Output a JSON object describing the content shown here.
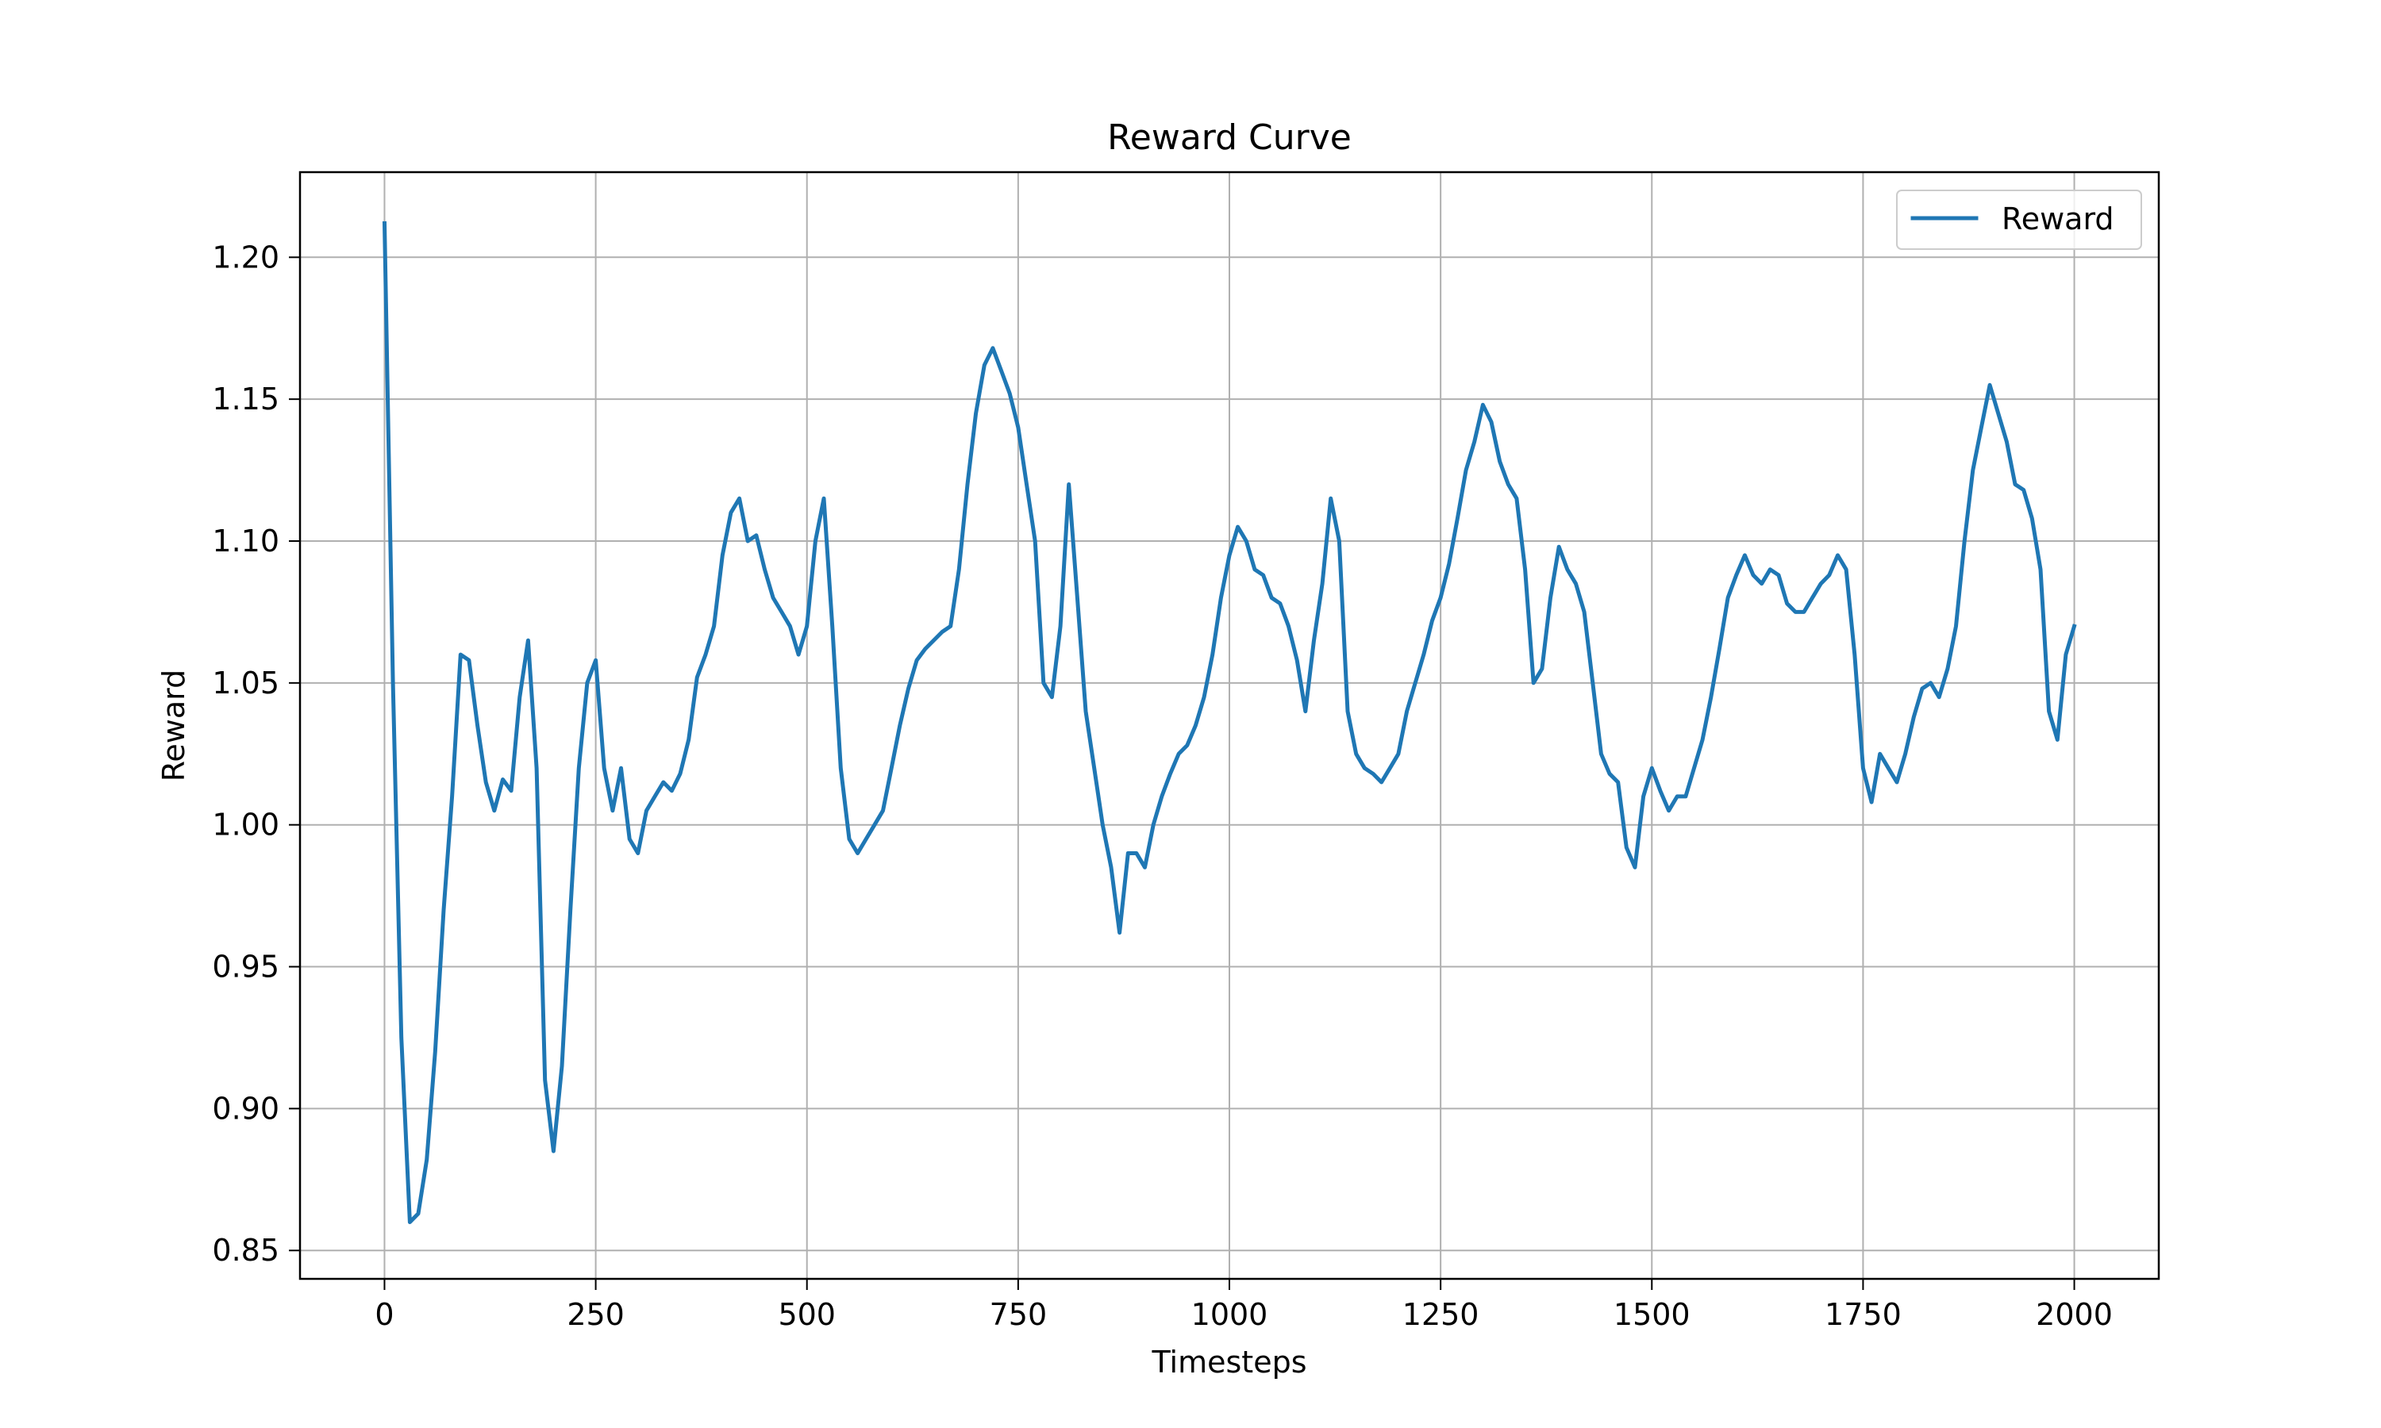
{
  "chart_data": {
    "type": "line",
    "title": "Reward Curve",
    "xlabel": "Timesteps",
    "ylabel": "Reward",
    "xlim": [
      -100,
      2100
    ],
    "ylim": [
      0.84,
      1.23
    ],
    "xticks": [
      0,
      250,
      500,
      750,
      1000,
      1250,
      1500,
      1750,
      2000
    ],
    "xtick_labels": [
      "0",
      "250",
      "500",
      "750",
      "1000",
      "1250",
      "1500",
      "1750",
      "2000"
    ],
    "yticks": [
      0.85,
      0.9,
      0.95,
      1.0,
      1.05,
      1.1,
      1.15,
      1.2
    ],
    "ytick_labels": [
      "0.85",
      "0.90",
      "0.95",
      "1.00",
      "1.05",
      "1.10",
      "1.15",
      "1.20"
    ],
    "grid": true,
    "legend_position": "top-right",
    "series": [
      {
        "name": "Reward",
        "color": "#1f77b4",
        "x": [
          0,
          10,
          20,
          30,
          40,
          50,
          60,
          70,
          80,
          90,
          100,
          110,
          120,
          130,
          140,
          150,
          160,
          170,
          180,
          190,
          200,
          210,
          220,
          230,
          240,
          250,
          260,
          270,
          280,
          290,
          300,
          310,
          320,
          330,
          340,
          350,
          360,
          370,
          380,
          390,
          400,
          410,
          420,
          430,
          440,
          450,
          460,
          470,
          480,
          490,
          500,
          510,
          520,
          530,
          540,
          550,
          560,
          570,
          580,
          590,
          600,
          610,
          620,
          630,
          640,
          650,
          660,
          670,
          680,
          690,
          700,
          710,
          720,
          730,
          740,
          750,
          760,
          770,
          780,
          790,
          800,
          810,
          820,
          830,
          840,
          850,
          860,
          870,
          880,
          890,
          900,
          910,
          920,
          930,
          940,
          950,
          960,
          970,
          980,
          990,
          1000,
          1010,
          1020,
          1030,
          1040,
          1050,
          1060,
          1070,
          1080,
          1090,
          1100,
          1110,
          1120,
          1130,
          1140,
          1150,
          1160,
          1170,
          1180,
          1190,
          1200,
          1210,
          1220,
          1230,
          1240,
          1250,
          1260,
          1270,
          1280,
          1290,
          1300,
          1310,
          1320,
          1330,
          1340,
          1350,
          1360,
          1370,
          1380,
          1390,
          1400,
          1410,
          1420,
          1430,
          1440,
          1450,
          1460,
          1470,
          1480,
          1490,
          1500,
          1510,
          1520,
          1530,
          1540,
          1550,
          1560,
          1570,
          1580,
          1590,
          1600,
          1610,
          1620,
          1630,
          1640,
          1650,
          1660,
          1670,
          1680,
          1690,
          1700,
          1710,
          1720,
          1730,
          1740,
          1750,
          1760,
          1770,
          1780,
          1790,
          1800,
          1810,
          1820,
          1830,
          1840,
          1850,
          1860,
          1870,
          1880,
          1890,
          1900,
          1910,
          1920,
          1930,
          1940,
          1950,
          1960,
          1970,
          1980,
          1990,
          2000
        ],
        "values": [
          1.212,
          1.05,
          0.925,
          0.86,
          0.863,
          0.882,
          0.92,
          0.97,
          1.01,
          1.06,
          1.058,
          1.035,
          1.015,
          1.005,
          1.016,
          1.012,
          1.045,
          1.065,
          1.02,
          0.91,
          0.885,
          0.915,
          0.97,
          1.02,
          1.05,
          1.058,
          1.02,
          1.005,
          1.02,
          0.995,
          0.99,
          1.005,
          1.01,
          1.015,
          1.012,
          1.018,
          1.03,
          1.052,
          1.06,
          1.07,
          1.095,
          1.11,
          1.115,
          1.1,
          1.102,
          1.09,
          1.08,
          1.075,
          1.07,
          1.06,
          1.07,
          1.1,
          1.115,
          1.07,
          1.02,
          0.995,
          0.99,
          0.995,
          1.0,
          1.005,
          1.02,
          1.035,
          1.048,
          1.058,
          1.062,
          1.065,
          1.068,
          1.07,
          1.09,
          1.12,
          1.145,
          1.162,
          1.168,
          1.16,
          1.152,
          1.14,
          1.12,
          1.1,
          1.05,
          1.045,
          1.07,
          1.12,
          1.08,
          1.04,
          1.02,
          1.0,
          0.985,
          0.962,
          0.99,
          0.99,
          0.985,
          1.0,
          1.01,
          1.018,
          1.025,
          1.028,
          1.035,
          1.045,
          1.06,
          1.08,
          1.095,
          1.105,
          1.1,
          1.09,
          1.088,
          1.08,
          1.078,
          1.07,
          1.058,
          1.04,
          1.065,
          1.085,
          1.115,
          1.1,
          1.04,
          1.025,
          1.02,
          1.018,
          1.015,
          1.02,
          1.025,
          1.04,
          1.05,
          1.06,
          1.072,
          1.08,
          1.092,
          1.108,
          1.125,
          1.135,
          1.148,
          1.142,
          1.128,
          1.12,
          1.115,
          1.09,
          1.05,
          1.055,
          1.08,
          1.098,
          1.09,
          1.085,
          1.075,
          1.05,
          1.025,
          1.018,
          1.015,
          0.992,
          0.985,
          1.01,
          1.02,
          1.012,
          1.005,
          1.01,
          1.01,
          1.02,
          1.03,
          1.045,
          1.062,
          1.08,
          1.088,
          1.095,
          1.088,
          1.085,
          1.09,
          1.088,
          1.078,
          1.075,
          1.075,
          1.08,
          1.085,
          1.088,
          1.095,
          1.09,
          1.06,
          1.02,
          1.008,
          1.025,
          1.02,
          1.015,
          1.025,
          1.038,
          1.048,
          1.05,
          1.045,
          1.055,
          1.07,
          1.1,
          1.125,
          1.14,
          1.155,
          1.145,
          1.135,
          1.12,
          1.118,
          1.108,
          1.09,
          1.04,
          1.03,
          1.06,
          1.07
        ]
      }
    ]
  }
}
